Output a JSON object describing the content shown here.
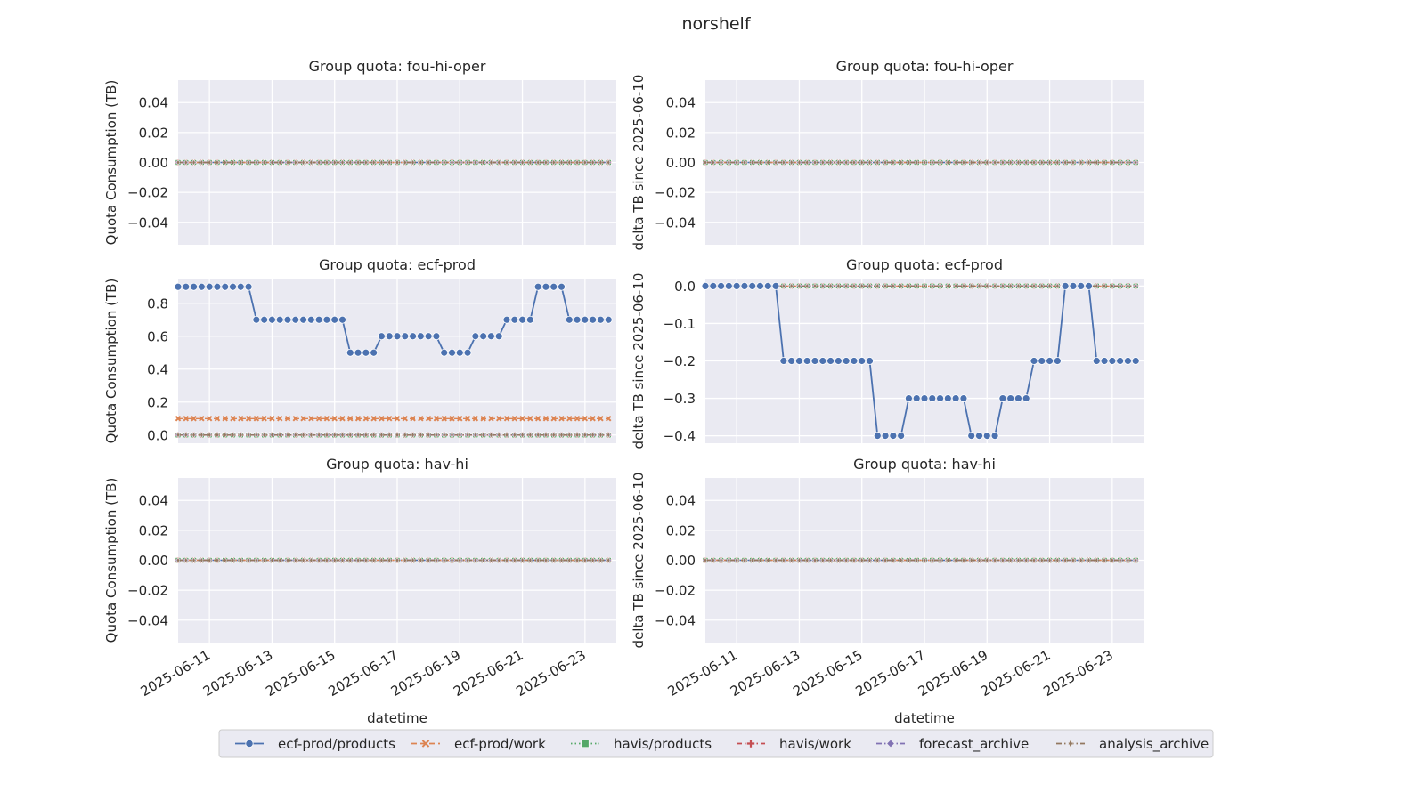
{
  "figure": {
    "title": "norshelf"
  },
  "legend": {
    "placement": "bottom-center",
    "entries": [
      {
        "name": "ecf-prod/products",
        "color": "#4c72b0",
        "marker": "circle",
        "dash": "solid"
      },
      {
        "name": "ecf-prod/work",
        "color": "#dd8452",
        "marker": "x",
        "dash": "dashed"
      },
      {
        "name": "havis/products",
        "color": "#55a868",
        "marker": "square",
        "dash": "dotted"
      },
      {
        "name": "havis/work",
        "color": "#c44e52",
        "marker": "plus",
        "dash": "dashdot"
      },
      {
        "name": "forecast_archive",
        "color": "#8172b3",
        "marker": "diamond",
        "dash": "dashdot"
      },
      {
        "name": "analysis_archive",
        "color": "#937860",
        "marker": "thin-diamond",
        "dash": "dashdot"
      }
    ]
  },
  "chart_data": [
    {
      "type": "line",
      "title": "Group quota: fou-hi-oper",
      "xlabel": "",
      "ylabel": "Quota Consumption (TB)",
      "xlim": [
        "2025-06-10",
        "2025-06-24"
      ],
      "ylim": [
        -0.055,
        0.055
      ],
      "xticks": [
        "2025-06-11",
        "2025-06-13",
        "2025-06-15",
        "2025-06-17",
        "2025-06-19",
        "2025-06-21",
        "2025-06-23"
      ],
      "yticks": [
        "0.04",
        "0.02",
        "0.00",
        "−0.02",
        "−0.04"
      ],
      "grid": true,
      "series": [
        {
          "name": "ecf-prod/products",
          "value_all": 0.0
        },
        {
          "name": "ecf-prod/work",
          "value_all": 0.0
        },
        {
          "name": "havis/products",
          "value_all": 0.0
        },
        {
          "name": "havis/work",
          "value_all": 0.0
        },
        {
          "name": "forecast_archive",
          "value_all": 0.0
        },
        {
          "name": "analysis_archive",
          "value_all": 0.0
        }
      ]
    },
    {
      "type": "line",
      "title": "Group quota: fou-hi-oper",
      "xlabel": "",
      "ylabel": "delta TB since 2025-06-10",
      "xlim": [
        "2025-06-10",
        "2025-06-24"
      ],
      "ylim": [
        -0.055,
        0.055
      ],
      "xticks": [
        "2025-06-11",
        "2025-06-13",
        "2025-06-15",
        "2025-06-17",
        "2025-06-19",
        "2025-06-21",
        "2025-06-23"
      ],
      "yticks": [
        "0.04",
        "0.02",
        "0.00",
        "−0.02",
        "−0.04"
      ],
      "grid": true,
      "series": [
        {
          "name": "ecf-prod/products",
          "value_all": 0.0
        },
        {
          "name": "ecf-prod/work",
          "value_all": 0.0
        },
        {
          "name": "havis/products",
          "value_all": 0.0
        },
        {
          "name": "havis/work",
          "value_all": 0.0
        },
        {
          "name": "forecast_archive",
          "value_all": 0.0
        },
        {
          "name": "analysis_archive",
          "value_all": 0.0
        }
      ]
    },
    {
      "type": "line",
      "title": "Group quota: ecf-prod",
      "xlabel": "",
      "ylabel": "Quota Consumption (TB)",
      "xlim": [
        "2025-06-10",
        "2025-06-24"
      ],
      "ylim": [
        -0.05,
        0.95
      ],
      "xticks": [
        "2025-06-11",
        "2025-06-13",
        "2025-06-15",
        "2025-06-17",
        "2025-06-19",
        "2025-06-21",
        "2025-06-23"
      ],
      "yticks": [
        "0.8",
        "0.6",
        "0.4",
        "0.2",
        "0.0"
      ],
      "grid": true,
      "series": [
        {
          "name": "ecf-prod/products",
          "steps": [
            {
              "from": "2025-06-10T00:00",
              "to": "2025-06-12T06:00",
              "value": 0.9
            },
            {
              "from": "2025-06-12T12:00",
              "to": "2025-06-15T06:00",
              "value": 0.7
            },
            {
              "from": "2025-06-15T12:00",
              "to": "2025-06-16T06:00",
              "value": 0.5
            },
            {
              "from": "2025-06-16T12:00",
              "to": "2025-06-18T06:00",
              "value": 0.6
            },
            {
              "from": "2025-06-18T12:00",
              "to": "2025-06-19T06:00",
              "value": 0.5
            },
            {
              "from": "2025-06-19T12:00",
              "to": "2025-06-20T06:00",
              "value": 0.6
            },
            {
              "from": "2025-06-20T12:00",
              "to": "2025-06-21T06:00",
              "value": 0.7
            },
            {
              "from": "2025-06-21T12:00",
              "to": "2025-06-22T06:00",
              "value": 0.9
            },
            {
              "from": "2025-06-22T12:00",
              "to": "2025-06-23T18:00",
              "value": 0.7
            }
          ]
        },
        {
          "name": "ecf-prod/work",
          "value_all": 0.1
        },
        {
          "name": "havis/products",
          "value_all": 0.0
        },
        {
          "name": "havis/work",
          "value_all": 0.0
        },
        {
          "name": "forecast_archive",
          "value_all": 0.0
        },
        {
          "name": "analysis_archive",
          "value_all": 0.0
        }
      ]
    },
    {
      "type": "line",
      "title": "Group quota: ecf-prod",
      "xlabel": "",
      "ylabel": "delta TB since 2025-06-10",
      "xlim": [
        "2025-06-10",
        "2025-06-24"
      ],
      "ylim": [
        -0.42,
        0.02
      ],
      "xticks": [
        "2025-06-11",
        "2025-06-13",
        "2025-06-15",
        "2025-06-17",
        "2025-06-19",
        "2025-06-21",
        "2025-06-23"
      ],
      "yticks": [
        "0.0",
        "−0.1",
        "−0.2",
        "−0.3",
        "−0.4"
      ],
      "grid": true,
      "series": [
        {
          "name": "ecf-prod/products",
          "steps": [
            {
              "from": "2025-06-10T00:00",
              "to": "2025-06-12T06:00",
              "value": 0.0
            },
            {
              "from": "2025-06-12T12:00",
              "to": "2025-06-15T06:00",
              "value": -0.2
            },
            {
              "from": "2025-06-15T12:00",
              "to": "2025-06-16T06:00",
              "value": -0.4
            },
            {
              "from": "2025-06-16T12:00",
              "to": "2025-06-18T06:00",
              "value": -0.3
            },
            {
              "from": "2025-06-18T12:00",
              "to": "2025-06-19T06:00",
              "value": -0.4
            },
            {
              "from": "2025-06-19T12:00",
              "to": "2025-06-20T06:00",
              "value": -0.3
            },
            {
              "from": "2025-06-20T12:00",
              "to": "2025-06-21T06:00",
              "value": -0.2
            },
            {
              "from": "2025-06-21T12:00",
              "to": "2025-06-22T06:00",
              "value": 0.0
            },
            {
              "from": "2025-06-22T12:00",
              "to": "2025-06-23T18:00",
              "value": -0.2
            }
          ]
        },
        {
          "name": "ecf-prod/work",
          "value_all": 0.0
        },
        {
          "name": "havis/products",
          "value_all": 0.0
        },
        {
          "name": "havis/work",
          "value_all": 0.0
        },
        {
          "name": "forecast_archive",
          "value_all": 0.0
        },
        {
          "name": "analysis_archive",
          "value_all": 0.0
        }
      ]
    },
    {
      "type": "line",
      "title": "Group quota: hav-hi",
      "xlabel": "datetime",
      "ylabel": "Quota Consumption (TB)",
      "xlim": [
        "2025-06-10",
        "2025-06-24"
      ],
      "ylim": [
        -0.055,
        0.055
      ],
      "xticks": [
        "2025-06-11",
        "2025-06-13",
        "2025-06-15",
        "2025-06-17",
        "2025-06-19",
        "2025-06-21",
        "2025-06-23"
      ],
      "yticks": [
        "0.04",
        "0.02",
        "0.00",
        "−0.02",
        "−0.04"
      ],
      "grid": true,
      "series": [
        {
          "name": "ecf-prod/products",
          "value_all": 0.0
        },
        {
          "name": "ecf-prod/work",
          "value_all": 0.0
        },
        {
          "name": "havis/products",
          "value_all": 0.0
        },
        {
          "name": "havis/work",
          "value_all": 0.0
        },
        {
          "name": "forecast_archive",
          "value_all": 0.0
        },
        {
          "name": "analysis_archive",
          "value_all": 0.0
        }
      ]
    },
    {
      "type": "line",
      "title": "Group quota: hav-hi",
      "xlabel": "datetime",
      "ylabel": "delta TB since 2025-06-10",
      "xlim": [
        "2025-06-10",
        "2025-06-24"
      ],
      "ylim": [
        -0.055,
        0.055
      ],
      "xticks": [
        "2025-06-11",
        "2025-06-13",
        "2025-06-15",
        "2025-06-17",
        "2025-06-19",
        "2025-06-21",
        "2025-06-23"
      ],
      "yticks": [
        "0.04",
        "0.02",
        "0.00",
        "−0.02",
        "−0.04"
      ],
      "grid": true,
      "series": [
        {
          "name": "ecf-prod/products",
          "value_all": 0.0
        },
        {
          "name": "ecf-prod/work",
          "value_all": 0.0
        },
        {
          "name": "havis/products",
          "value_all": 0.0
        },
        {
          "name": "havis/work",
          "value_all": 0.0
        },
        {
          "name": "forecast_archive",
          "value_all": 0.0
        },
        {
          "name": "analysis_archive",
          "value_all": 0.0
        }
      ]
    }
  ]
}
